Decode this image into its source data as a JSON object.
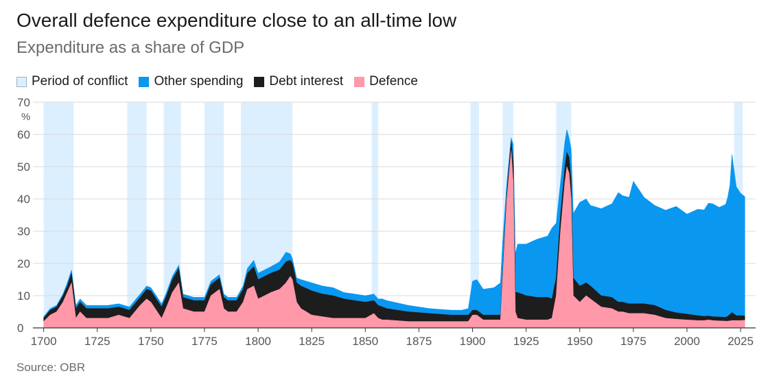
{
  "title": "Overall defence expenditure close to an all-time low",
  "subtitle": "Expenditure as a share of GDP",
  "source": "Source: OBR",
  "legend": [
    {
      "key": "conflict",
      "label": "Period of conflict",
      "color": "#dcefff",
      "border": "#9ab4cc"
    },
    {
      "key": "other",
      "label": "Other spending",
      "color": "#0a97f0"
    },
    {
      "key": "debt",
      "label": "Debt interest",
      "color": "#1d1d1d"
    },
    {
      "key": "defence",
      "label": "Defence",
      "color": "#ff98a8"
    }
  ],
  "chart_data": {
    "type": "area",
    "stacked": true,
    "ylabel": "%",
    "ylim": [
      0,
      70
    ],
    "xlim": [
      1695,
      2032
    ],
    "yticks": [
      0,
      10,
      20,
      30,
      40,
      50,
      60,
      70
    ],
    "xticks": [
      1700,
      1725,
      1750,
      1775,
      1800,
      1825,
      1850,
      1875,
      1900,
      1925,
      1950,
      1975,
      2000,
      2025
    ],
    "grid": "horizontal",
    "conflict_periods": [
      [
        1700,
        1714
      ],
      [
        1739,
        1748
      ],
      [
        1756,
        1764
      ],
      [
        1775,
        1784
      ],
      [
        1792,
        1816
      ],
      [
        1853,
        1856
      ],
      [
        1899,
        1903
      ],
      [
        1914,
        1919
      ],
      [
        1939,
        1946
      ],
      [
        2022,
        2026
      ]
    ],
    "x": [
      1700,
      1703,
      1706,
      1709,
      1711,
      1713,
      1715,
      1717,
      1720,
      1725,
      1730,
      1735,
      1740,
      1745,
      1748,
      1750,
      1755,
      1757,
      1760,
      1763,
      1765,
      1770,
      1775,
      1778,
      1782,
      1784,
      1786,
      1790,
      1793,
      1795,
      1798,
      1800,
      1803,
      1806,
      1810,
      1813,
      1815,
      1816,
      1818,
      1820,
      1825,
      1830,
      1835,
      1840,
      1845,
      1850,
      1854,
      1856,
      1858,
      1860,
      1870,
      1880,
      1890,
      1895,
      1898,
      1900,
      1902,
      1905,
      1910,
      1913,
      1914,
      1916,
      1918,
      1919,
      1920,
      1921,
      1925,
      1930,
      1935,
      1937,
      1939,
      1941,
      1943,
      1944,
      1945,
      1946,
      1947,
      1950,
      1953,
      1955,
      1960,
      1965,
      1968,
      1970,
      1973,
      1975,
      1980,
      1985,
      1990,
      1995,
      2000,
      2005,
      2008,
      2010,
      2012,
      2015,
      2018,
      2019,
      2020,
      2021,
      2023,
      2025,
      2027
    ],
    "series": [
      {
        "name": "Defence",
        "values": [
          2,
          4,
          5,
          8,
          11,
          14,
          3,
          5,
          3,
          3,
          3,
          4,
          3,
          7,
          9,
          8,
          3,
          6,
          11,
          14,
          6,
          5,
          5,
          10,
          12,
          6,
          5,
          5,
          8,
          12,
          13,
          9,
          10,
          11,
          12,
          14,
          16,
          15,
          8,
          6,
          4,
          3.5,
          3,
          3,
          3,
          3,
          4.5,
          3,
          2.5,
          2.5,
          2,
          2,
          2,
          2,
          2,
          4,
          4,
          2.5,
          2.5,
          2.5,
          15,
          40,
          55,
          45,
          5,
          3,
          2.5,
          2.5,
          2.5,
          3,
          10,
          30,
          45,
          50,
          48,
          40,
          10,
          8,
          10,
          9,
          6.5,
          6,
          5,
          5,
          4.5,
          4.5,
          4.5,
          4,
          3,
          2.7,
          2.5,
          2.3,
          2.3,
          2.5,
          2.3,
          2.2,
          2.1,
          2.1,
          2.2,
          2.3,
          2.3,
          2.3,
          2.4
        ]
      },
      {
        "name": "Debt interest",
        "values": [
          1,
          1.5,
          1.5,
          2,
          2,
          3,
          3,
          3,
          3,
          3,
          3,
          2.5,
          2.5,
          2.5,
          3,
          3.5,
          3.5,
          3.5,
          4,
          4.5,
          3.5,
          3.5,
          3.5,
          3.5,
          3.5,
          3.5,
          3.5,
          3.5,
          4,
          5,
          6,
          6,
          6,
          6,
          6,
          6.5,
          5,
          5,
          6,
          7,
          7.5,
          7,
          7,
          6,
          5.5,
          5,
          4,
          4,
          4,
          3.5,
          3,
          2.5,
          2,
          2,
          2,
          1.5,
          1.5,
          1.5,
          1.5,
          1.5,
          1.5,
          2,
          3,
          6,
          6,
          8,
          7.5,
          7,
          7,
          6,
          5.5,
          5,
          4.5,
          4.5,
          5,
          5.5,
          5.5,
          5,
          4,
          4,
          3.5,
          3.5,
          3,
          3,
          3,
          3,
          3,
          3,
          2.5,
          2,
          1.8,
          1.5,
          1.3,
          1.2,
          1.2,
          1.2,
          1.2,
          1.5,
          2,
          2.5,
          1.5,
          1.5,
          1.3
        ]
      },
      {
        "name": "Other spending",
        "values": [
          0.5,
          0.5,
          0.5,
          0.5,
          1,
          1,
          1,
          1,
          1,
          1,
          1,
          1,
          1,
          1,
          1,
          1,
          1,
          1,
          1,
          1,
          1,
          1,
          1,
          1,
          1,
          1,
          1,
          1,
          1,
          1.5,
          2,
          2,
          2,
          2,
          2.5,
          3,
          2,
          1.5,
          1.5,
          2,
          2.5,
          2.5,
          2.5,
          2,
          2,
          2,
          2,
          2,
          2.5,
          2.5,
          2,
          1.5,
          1.5,
          1.5,
          2,
          9,
          9.5,
          8,
          8.5,
          10,
          10,
          3,
          1,
          6,
          12,
          15,
          16,
          18,
          19,
          22,
          17,
          10,
          8,
          7,
          6,
          10,
          20,
          26,
          26,
          25,
          27,
          29,
          34,
          33,
          33,
          38,
          33,
          31,
          31,
          33,
          31,
          33,
          33,
          35,
          35,
          34,
          35,
          37,
          40,
          49,
          40,
          38,
          37
        ]
      }
    ]
  }
}
